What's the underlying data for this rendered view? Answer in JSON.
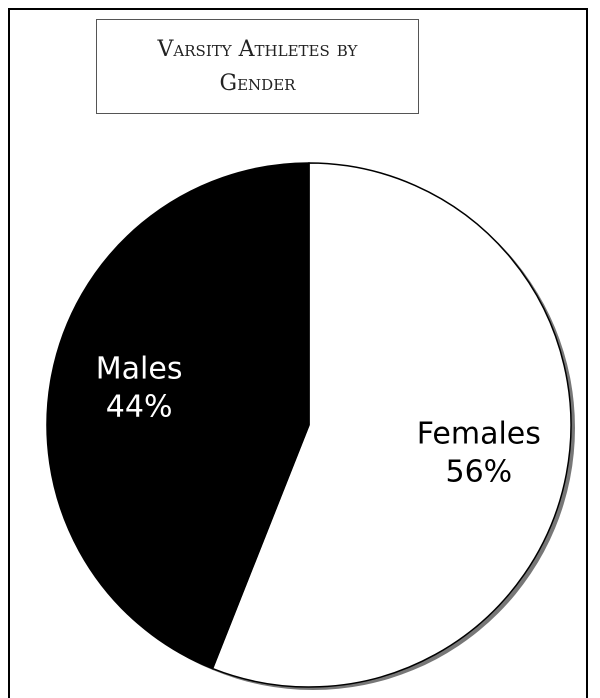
{
  "chart_data": {
    "type": "pie",
    "title": "Varsity Athletes by Gender",
    "categories": [
      "Females",
      "Males"
    ],
    "values": [
      56,
      44
    ],
    "value_labels": [
      "56%",
      "44%"
    ],
    "colors": [
      "#ffffff",
      "#000000"
    ],
    "label_colors": [
      "#000000",
      "#ffffff"
    ]
  }
}
